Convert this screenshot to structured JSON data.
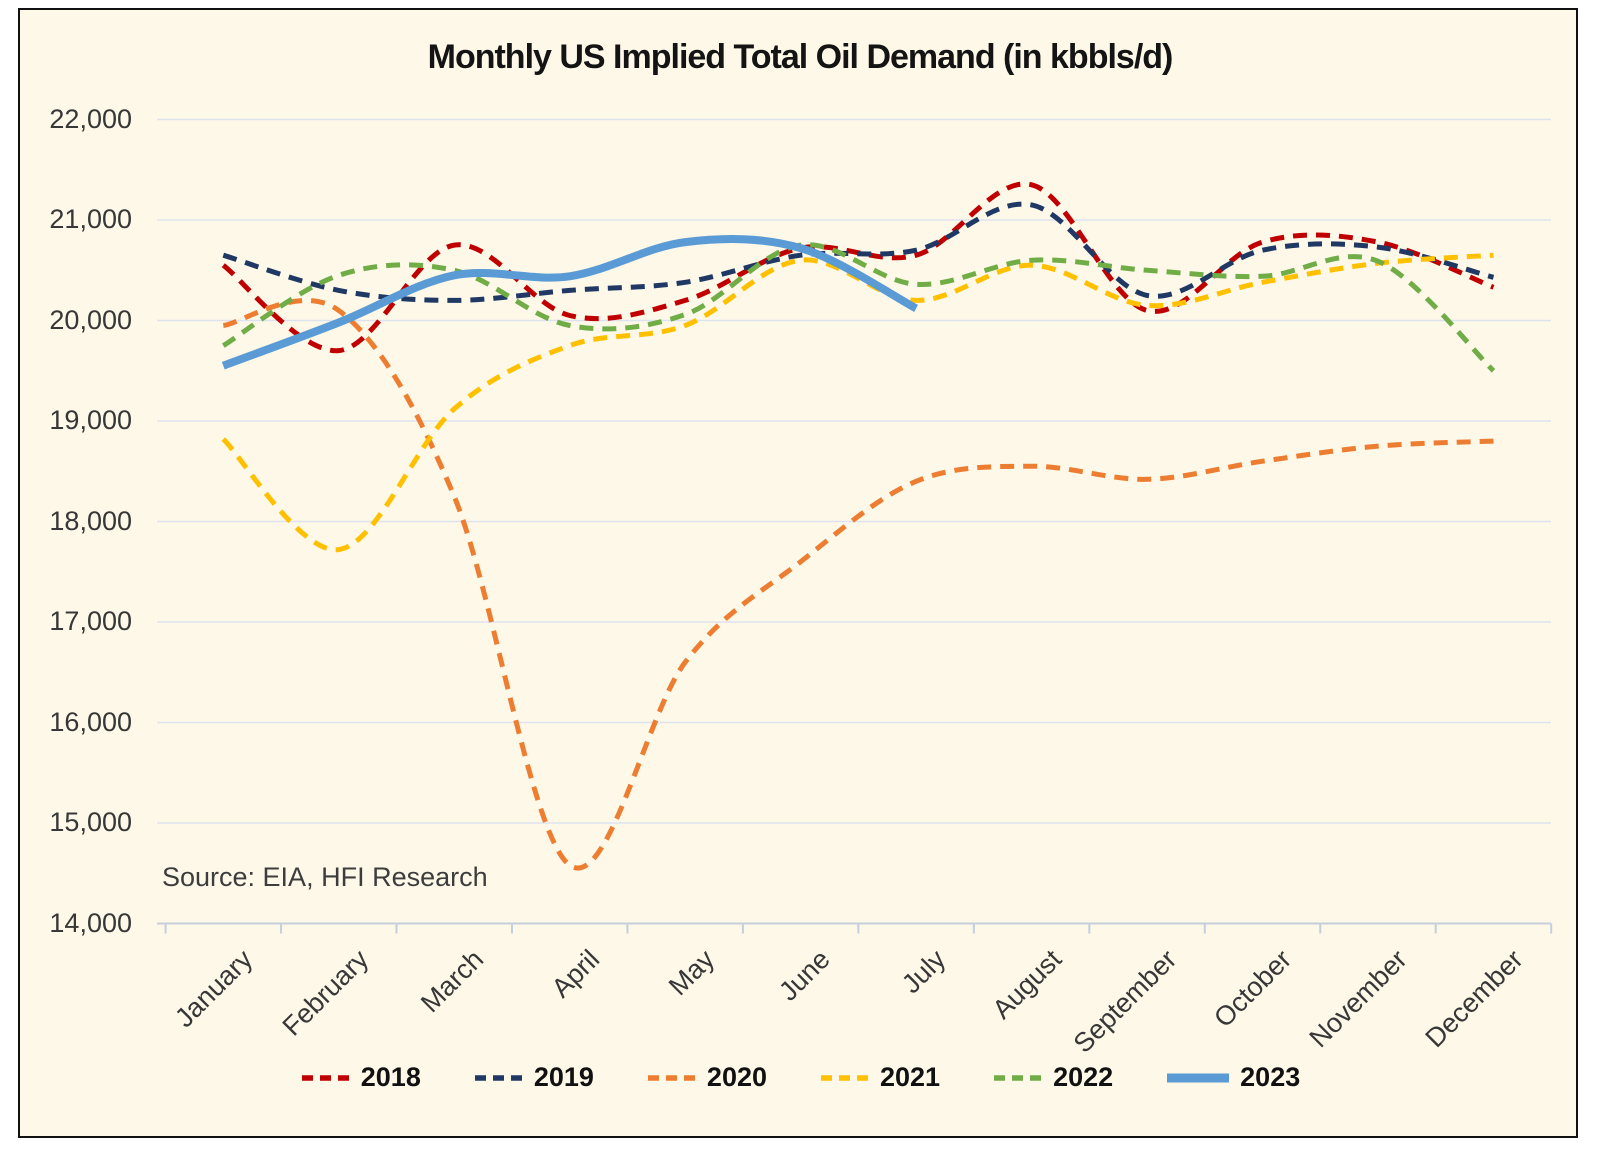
{
  "title": "Monthly US Implied Total Oil Demand (in kbbls/d)",
  "source_note": "Source: EIA, HFI Research",
  "colors": {
    "background": "#fdf8e8",
    "frame_border": "#111111",
    "gridline": "#dde3ee",
    "axis_line": "#c5cedd",
    "text": "#373737"
  },
  "chart_data": {
    "type": "line",
    "title": "Monthly US Implied Total Oil Demand (in kbbls/d)",
    "xlabel": "",
    "ylabel": "",
    "categories": [
      "January",
      "February",
      "March",
      "April",
      "May",
      "June",
      "July",
      "August",
      "September",
      "October",
      "November",
      "December"
    ],
    "ylim": [
      14000,
      22000
    ],
    "ytick_step": 1000,
    "ytick_labels": [
      "14,000",
      "15,000",
      "16,000",
      "17,000",
      "18,000",
      "19,000",
      "20,000",
      "21,000",
      "22,000"
    ],
    "grid": "horizontal",
    "legend_position": "bottom",
    "line_smoothing": true,
    "series": [
      {
        "name": "2018",
        "color": "#C00000",
        "style": "dashed",
        "values": [
          20550,
          19700,
          20750,
          20050,
          20200,
          20720,
          20650,
          21350,
          20100,
          20780,
          20780,
          20330
        ]
      },
      {
        "name": "2019",
        "color": "#1F3864",
        "style": "dashed",
        "values": [
          20650,
          20300,
          20200,
          20300,
          20380,
          20650,
          20700,
          21150,
          20250,
          20700,
          20730,
          20430
        ]
      },
      {
        "name": "2020",
        "color": "#ED7D31",
        "style": "dashed",
        "values": [
          19950,
          20100,
          18250,
          14580,
          16600,
          17600,
          18400,
          18550,
          18420,
          18600,
          18750,
          18800
        ]
      },
      {
        "name": "2021",
        "color": "#FFC000",
        "style": "dashed",
        "values": [
          18820,
          17720,
          19120,
          19750,
          19950,
          20600,
          20200,
          20550,
          20150,
          20380,
          20570,
          20650
        ]
      },
      {
        "name": "2022",
        "color": "#70AD47",
        "style": "dashed",
        "values": [
          19750,
          20450,
          20500,
          19950,
          20060,
          20750,
          20360,
          20600,
          20500,
          20440,
          20590,
          19500
        ]
      },
      {
        "name": "2023",
        "color": "#5B9BD5",
        "style": "solid",
        "values": [
          19550,
          19980,
          20450,
          20440,
          20780,
          20720,
          20120
        ]
      }
    ]
  }
}
